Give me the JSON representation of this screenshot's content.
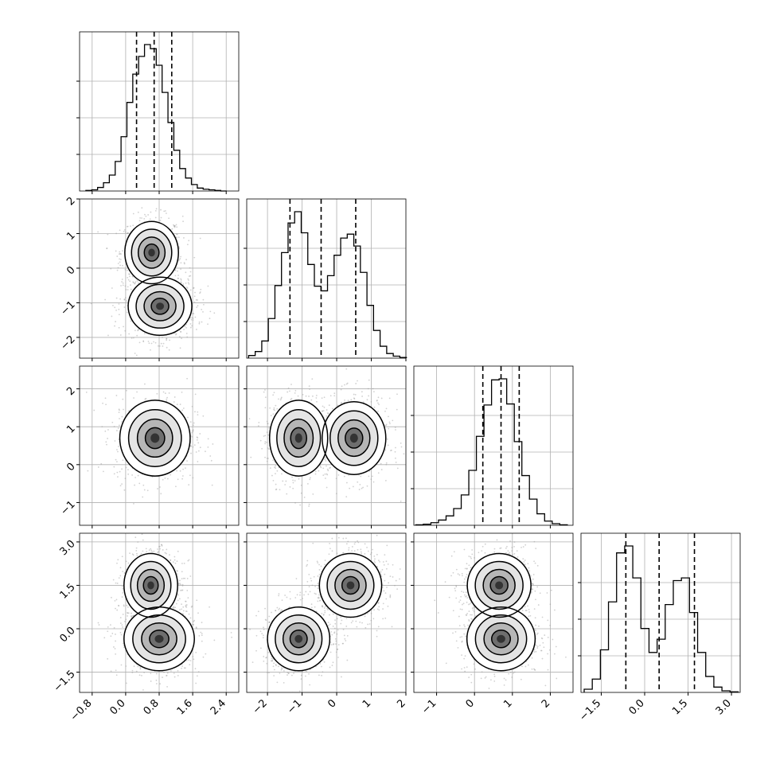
{
  "chart_data": {
    "type": "corner",
    "title": "",
    "parameter_labels": [
      "",
      "",
      "",
      ""
    ],
    "grid": true,
    "colors": {
      "contour": "#000000",
      "scatter": "#9a9a9a",
      "density": "#000000",
      "histogram": "#000000"
    },
    "ranges": [
      [
        -1.1,
        2.7
      ],
      [
        -2.6,
        2.0
      ],
      [
        -1.6,
        2.6
      ],
      [
        -2.2,
        3.3
      ]
    ],
    "ticks": [
      [
        -0.8,
        0.0,
        0.8,
        1.6,
        2.4
      ],
      [
        -2,
        -1,
        0,
        1,
        2
      ],
      [
        -1,
        0,
        1,
        2
      ],
      [
        -1.5,
        0.0,
        1.5,
        3.0
      ]
    ],
    "tick_labels": [
      [
        "−0.8",
        "0.0",
        "0.8",
        "1.6",
        "2.4"
      ],
      [
        "−2",
        "−1",
        "0",
        "1",
        "2"
      ],
      [
        "−1",
        "0",
        "1",
        "2"
      ],
      [
        "−1.5",
        "0.0",
        "1.5",
        "3.0"
      ]
    ],
    "quantiles": [
      [
        0.26,
        0.68,
        1.1
      ],
      [
        -1.35,
        -0.45,
        0.55
      ],
      [
        0.22,
        0.7,
        1.18
      ],
      [
        -0.65,
        0.5,
        1.72
      ]
    ],
    "histograms": [
      {
        "bin_centers": [
          -0.88,
          -0.74,
          -0.6,
          -0.46,
          -0.32,
          -0.18,
          -0.04,
          0.1,
          0.24,
          0.38,
          0.52,
          0.66,
          0.8,
          0.94,
          1.08,
          1.22,
          1.36,
          1.5,
          1.64,
          1.78,
          1.92,
          2.06,
          2.2,
          2.34
        ],
        "counts": [
          1,
          2,
          6,
          14,
          27,
          50,
          92,
          150,
          198,
          228,
          248,
          241,
          213,
          167,
          116,
          69,
          38,
          22,
          11,
          5,
          3,
          2,
          1,
          0
        ]
      },
      {
        "bin_centers": [
          -2.45,
          -2.26,
          -2.07,
          -1.88,
          -1.69,
          -1.5,
          -1.31,
          -1.12,
          -0.93,
          -0.74,
          -0.55,
          -0.36,
          -0.17,
          0.02,
          0.21,
          0.4,
          0.59,
          0.78,
          0.97,
          1.16,
          1.35,
          1.54,
          1.73,
          1.92
        ],
        "counts": [
          4,
          10,
          26,
          60,
          110,
          160,
          205,
          222,
          190,
          142,
          109,
          102,
          125,
          156,
          182,
          188,
          170,
          130,
          80,
          42,
          18,
          7,
          3,
          1
        ]
      },
      {
        "bin_centers": [
          -1.45,
          -1.25,
          -1.05,
          -0.85,
          -0.65,
          -0.45,
          -0.25,
          -0.05,
          0.15,
          0.35,
          0.55,
          0.75,
          0.95,
          1.15,
          1.35,
          1.55,
          1.75,
          1.95,
          2.15,
          2.35
        ],
        "counts": [
          1,
          2,
          5,
          10,
          18,
          32,
          58,
          105,
          170,
          230,
          278,
          280,
          232,
          160,
          95,
          50,
          22,
          8,
          3,
          1
        ]
      },
      {
        "bin_centers": [
          -1.95,
          -1.67,
          -1.39,
          -1.11,
          -0.83,
          -0.55,
          -0.27,
          0.01,
          0.29,
          0.57,
          0.85,
          1.13,
          1.41,
          1.69,
          1.97,
          2.25,
          2.53,
          2.81,
          3.09
        ],
        "counts": [
          6,
          25,
          80,
          170,
          262,
          275,
          215,
          120,
          75,
          100,
          165,
          210,
          215,
          150,
          75,
          30,
          10,
          3,
          1
        ]
      }
    ],
    "pairs": [
      {
        "row": 1,
        "col": 0,
        "modes": [
          {
            "x": 0.62,
            "y": 0.45,
            "sx": 0.32,
            "sy": 0.45
          },
          {
            "x": 0.82,
            "y": -1.1,
            "sx": 0.38,
            "sy": 0.42
          }
        ]
      },
      {
        "row": 2,
        "col": 0,
        "modes": [
          {
            "x": 0.7,
            "y": 0.7,
            "sx": 0.42,
            "sy": 0.5
          }
        ]
      },
      {
        "row": 2,
        "col": 1,
        "modes": [
          {
            "x": -1.1,
            "y": 0.7,
            "sx": 0.42,
            "sy": 0.5
          },
          {
            "x": 0.5,
            "y": 0.7,
            "sx": 0.46,
            "sy": 0.48
          }
        ]
      },
      {
        "row": 3,
        "col": 0,
        "modes": [
          {
            "x": 0.6,
            "y": 1.5,
            "sx": 0.32,
            "sy": 0.55
          },
          {
            "x": 0.8,
            "y": -0.35,
            "sx": 0.42,
            "sy": 0.55
          }
        ]
      },
      {
        "row": 3,
        "col": 1,
        "modes": [
          {
            "x": -1.1,
            "y": -0.35,
            "sx": 0.45,
            "sy": 0.55
          },
          {
            "x": 0.4,
            "y": 1.5,
            "sx": 0.45,
            "sy": 0.55
          }
        ]
      },
      {
        "row": 3,
        "col": 2,
        "modes": [
          {
            "x": 0.65,
            "y": 1.5,
            "sx": 0.42,
            "sy": 0.55
          },
          {
            "x": 0.7,
            "y": -0.35,
            "sx": 0.45,
            "sy": 0.55
          }
        ]
      }
    ]
  }
}
